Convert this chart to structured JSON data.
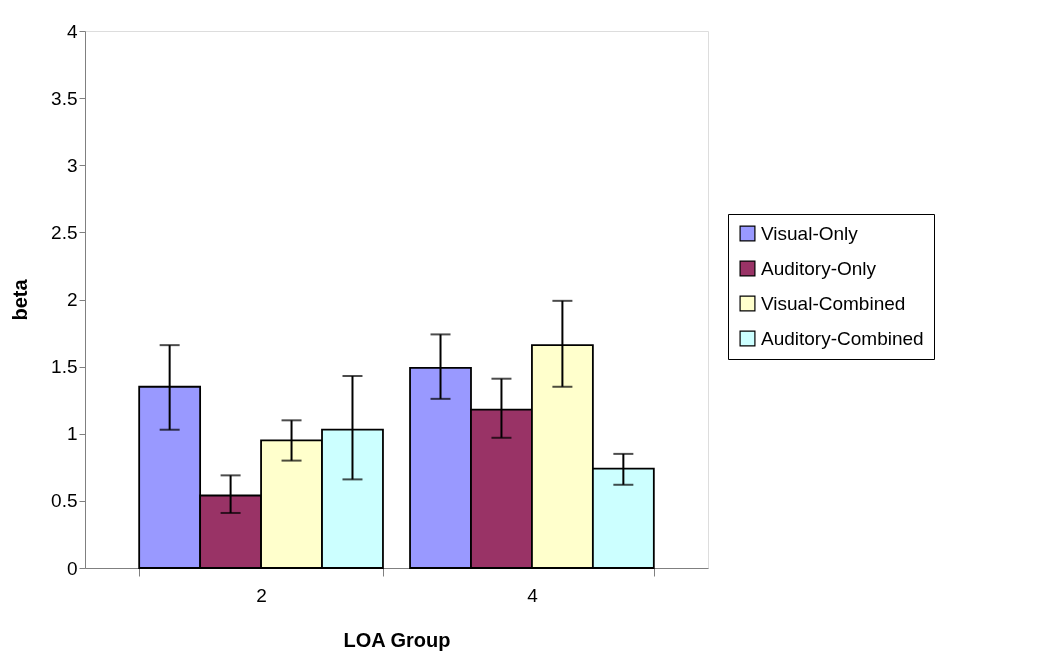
{
  "chart_data": {
    "type": "bar",
    "xlabel": "LOA Group",
    "ylabel": "beta",
    "categories": [
      "2",
      "4"
    ],
    "series": [
      {
        "name": "Visual-Only",
        "color": "#9999ff",
        "values": [
          1.35,
          1.49
        ],
        "errors": [
          [
            1.03,
            1.66
          ],
          [
            1.26,
            1.74
          ]
        ]
      },
      {
        "name": "Auditory-Only",
        "color": "#993366",
        "values": [
          0.54,
          1.18
        ],
        "errors": [
          [
            0.41,
            0.69
          ],
          [
            0.97,
            1.41
          ]
        ]
      },
      {
        "name": "Visual-Combined",
        "color": "#ffffcc",
        "values": [
          0.95,
          1.66
        ],
        "errors": [
          [
            0.8,
            1.1
          ],
          [
            1.35,
            1.99
          ]
        ]
      },
      {
        "name": "Auditory-Combined",
        "color": "#ccffff",
        "values": [
          1.03,
          0.74
        ],
        "errors": [
          [
            0.66,
            1.43
          ],
          [
            0.62,
            0.85
          ]
        ]
      }
    ],
    "ylim": [
      0,
      4
    ],
    "yticks": [
      0,
      0.5,
      1,
      1.5,
      2,
      2.5,
      3,
      3.5,
      4
    ],
    "grid": false,
    "legend": "right"
  }
}
